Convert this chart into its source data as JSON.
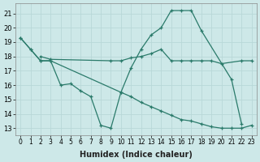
{
  "xlabel": "Humidex (Indice chaleur)",
  "background_color": "#cde8e8",
  "line_color": "#2a7a6a",
  "grid_color": "#b8d8d8",
  "xlim": [
    -0.5,
    23.5
  ],
  "ylim": [
    12.5,
    21.7
  ],
  "xticks": [
    0,
    1,
    2,
    3,
    4,
    5,
    6,
    7,
    8,
    9,
    10,
    11,
    12,
    13,
    14,
    15,
    16,
    17,
    18,
    19,
    20,
    21,
    22,
    23
  ],
  "yticks": [
    13,
    14,
    15,
    16,
    17,
    18,
    19,
    20,
    21
  ],
  "line1_x": [
    0,
    1,
    2,
    3,
    10,
    11,
    12,
    13,
    14,
    15,
    16,
    17,
    18,
    21,
    22
  ],
  "line1_y": [
    19.3,
    18.5,
    17.7,
    17.7,
    15.5,
    17.2,
    18.5,
    19.5,
    20.0,
    21.2,
    21.2,
    21.2,
    19.8,
    16.4,
    13.3
  ],
  "line2_x": [
    0,
    1,
    2,
    3,
    4,
    5,
    6,
    7,
    8,
    9,
    10,
    11,
    12,
    13,
    14,
    15,
    16,
    17,
    18,
    19,
    20,
    21,
    22,
    23
  ],
  "line2_y": [
    19.3,
    18.5,
    17.7,
    17.7,
    16.0,
    16.1,
    15.6,
    15.2,
    13.2,
    13.0,
    15.5,
    15.2,
    14.8,
    14.5,
    14.2,
    13.9,
    13.6,
    13.5,
    13.3,
    13.1,
    13.0,
    13.0,
    13.0,
    13.2
  ],
  "line3_x": [
    2,
    3,
    9,
    10,
    11,
    12,
    13,
    14,
    15,
    16,
    17,
    18,
    19,
    20,
    22,
    23
  ],
  "line3_y": [
    18.0,
    17.8,
    17.7,
    17.7,
    17.9,
    18.0,
    18.2,
    18.5,
    17.7,
    17.7,
    17.7,
    17.7,
    17.7,
    17.5,
    17.7,
    17.7
  ]
}
